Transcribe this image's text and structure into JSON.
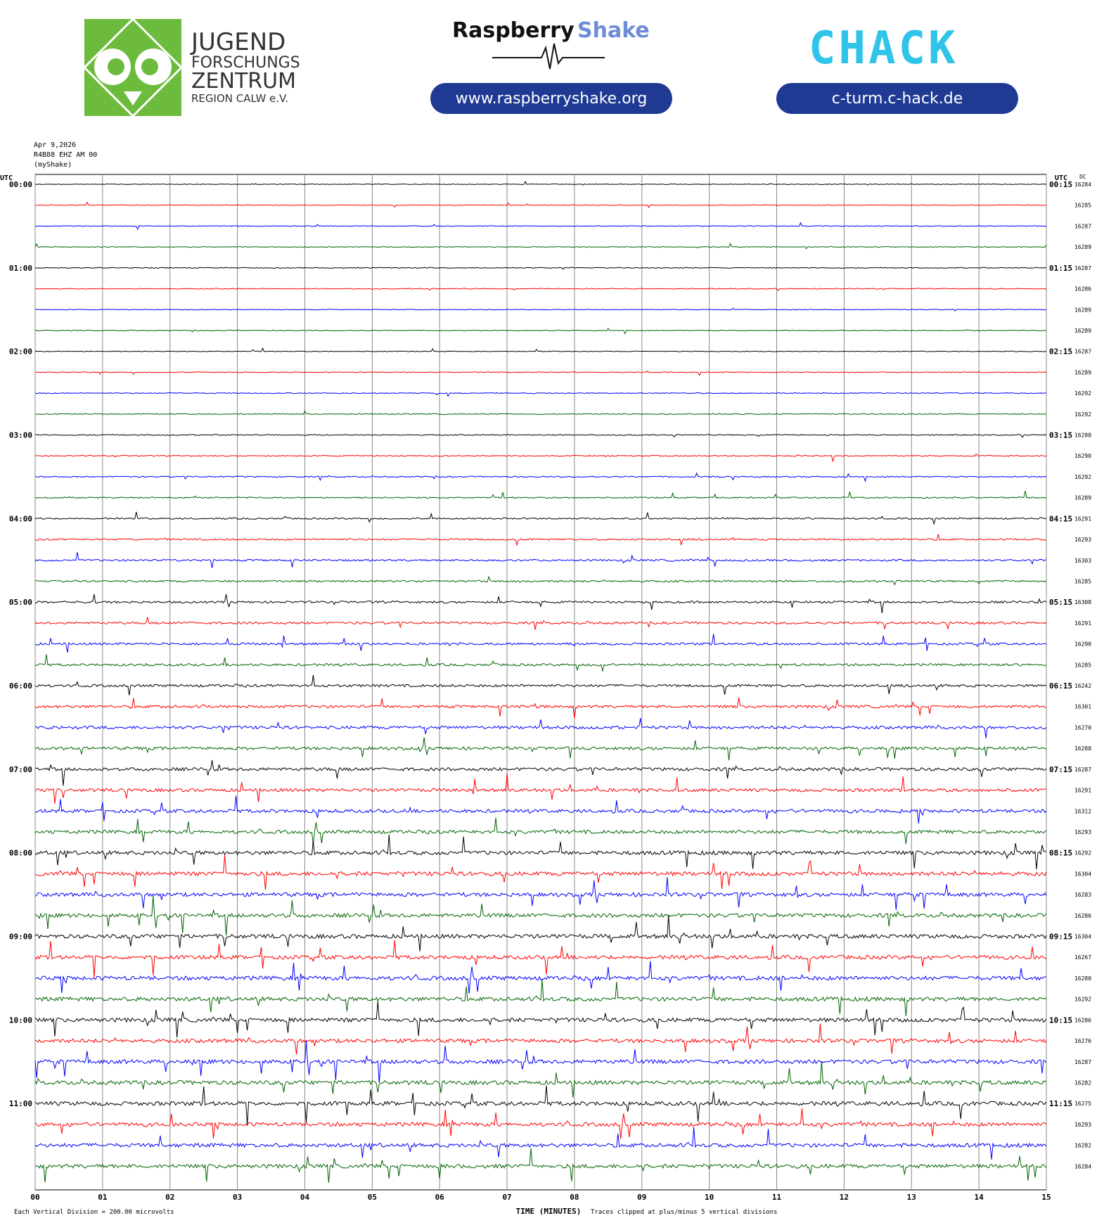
{
  "header": {
    "jfz_lines": [
      "JUGEND",
      "FORSCHUNGS",
      "ZENTRUM",
      "REGION CALW e.V."
    ],
    "raspberry_brand": [
      "Raspberry",
      "Shake"
    ],
    "raspberry_url": "www.raspberryshake.org",
    "chack_logo": "CHACK",
    "chack_url": "c-turm.c-hack.de"
  },
  "meta": {
    "date": "Apr 9,2026",
    "station": "R4B88 EHZ AM 00",
    "network": "(myShake)"
  },
  "colors": {
    "black": "#000000",
    "red": "#ff0000",
    "blue": "#0000ff",
    "green": "#006400",
    "brand_blue": "#1f3a93",
    "jfz_green": "#6cbb3c",
    "chack_green": "#7dc242",
    "chack_cyan": "#2fc4e8",
    "raspberry_blue": "#6e8bd8"
  },
  "chart_data": {
    "type": "line",
    "title": "",
    "xlabel": "TIME (MINUTES)",
    "ylabel": "",
    "xlim": [
      0,
      15
    ],
    "x_ticks": [
      "00",
      "01",
      "02",
      "03",
      "04",
      "05",
      "06",
      "07",
      "08",
      "09",
      "10",
      "11",
      "12",
      "13",
      "14",
      "15"
    ],
    "left_axis_label": "UTC",
    "right_axis_label": "UTC",
    "dc_label": "DC",
    "left_hour_labels": [
      "00:00",
      "01:00",
      "02:00",
      "03:00",
      "04:00",
      "05:00",
      "06:00",
      "07:00",
      "08:00",
      "09:00",
      "10:00",
      "11:00"
    ],
    "right_hour_labels": [
      "00:15",
      "01:15",
      "02:15",
      "03:15",
      "04:15",
      "05:15",
      "06:15",
      "07:15",
      "08:15",
      "09:15",
      "10:15",
      "11:15"
    ],
    "trace_colors": [
      "black",
      "red",
      "blue",
      "green"
    ],
    "dc_offsets": [
      16284,
      16285,
      16287,
      16289,
      16287,
      16286,
      16289,
      16289,
      16287,
      16289,
      16292,
      16292,
      16288,
      16290,
      16292,
      16289,
      16291,
      16293,
      16303,
      16285,
      16308,
      16291,
      16290,
      16285,
      16242,
      16301,
      16270,
      16288,
      16287,
      16291,
      16312,
      16293,
      16292,
      16304,
      16283,
      16286,
      16304,
      16267,
      16280,
      16292,
      16286,
      16276,
      16287,
      16282,
      16275,
      16293,
      16282,
      16284
    ],
    "activity_level": [
      0.3,
      0.3,
      0.35,
      0.35,
      0.4,
      0.4,
      0.35,
      0.4,
      0.35,
      0.4,
      0.45,
      0.45,
      0.5,
      0.5,
      0.55,
      0.6,
      0.7,
      0.8,
      0.9,
      0.9,
      1.0,
      1.1,
      1.1,
      1.1,
      1.2,
      1.3,
      1.4,
      1.4,
      1.5,
      1.5,
      1.6,
      1.6,
      1.8,
      1.9,
      1.8,
      1.8,
      1.9,
      1.8,
      1.9,
      1.9,
      1.9,
      1.8,
      1.9,
      1.9,
      1.9,
      1.8,
      1.8,
      1.8
    ],
    "footer_left": "Each Vertical Division =  200.00 microvolts",
    "footer_right": "Traces clipped at plus/minus 5 vertical divisions"
  }
}
